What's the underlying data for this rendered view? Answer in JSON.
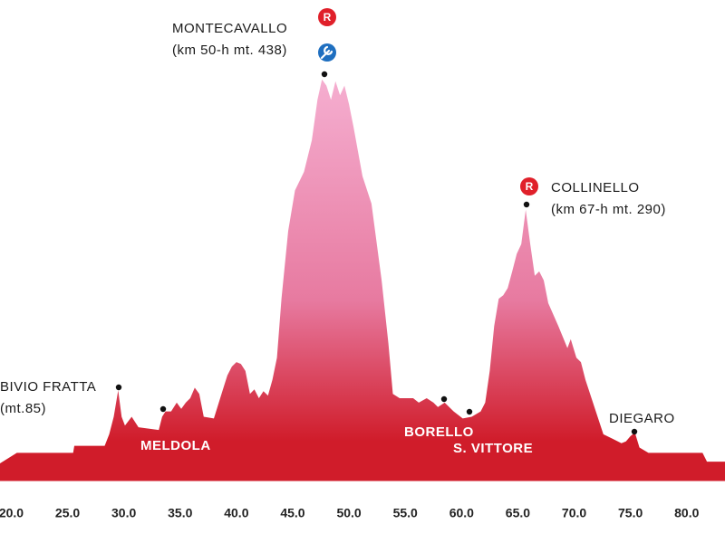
{
  "chart_data": {
    "type": "area",
    "color_top": "#f5aed0",
    "color_bottom": "#d01c2a",
    "xlim": [
      19.0,
      83.4
    ],
    "ylim": [
      -18,
      460
    ],
    "xticks": [
      {
        "value": 20,
        "label": "20.0"
      },
      {
        "value": 25,
        "label": "25.0"
      },
      {
        "value": 30,
        "label": "30.0"
      },
      {
        "value": 35,
        "label": "35.0"
      },
      {
        "value": 40,
        "label": "40.0"
      },
      {
        "value": 45,
        "label": "45.0"
      },
      {
        "value": 50,
        "label": "50.0"
      },
      {
        "value": 55,
        "label": "55.0"
      },
      {
        "value": 60,
        "label": "60.0"
      },
      {
        "value": 65,
        "label": "65.0"
      },
      {
        "value": 70,
        "label": "70.0"
      },
      {
        "value": 75,
        "label": "75.0"
      },
      {
        "value": 80,
        "label": "80.0"
      }
    ],
    "x": [
      19.0,
      20.5,
      25.5,
      25.6,
      28.3,
      28.7,
      29.1,
      29.5,
      29.8,
      30.1,
      30.7,
      31.3,
      33.1,
      33.4,
      33.7,
      34.2,
      34.7,
      35.1,
      35.5,
      35.9,
      36.3,
      36.7,
      37.1,
      38.0,
      38.8,
      39.2,
      39.6,
      40.0,
      40.4,
      40.8,
      41.2,
      41.6,
      42.0,
      42.4,
      42.8,
      43.2,
      43.6,
      44.0,
      44.6,
      45.2,
      46.0,
      46.7,
      47.2,
      47.6,
      48.0,
      48.4,
      48.8,
      49.2,
      49.6,
      50.0,
      50.4,
      51.2,
      52.0,
      52.9,
      53.5,
      53.9,
      54.5,
      55.7,
      56.2,
      56.9,
      57.5,
      57.9,
      58.5,
      59.3,
      60.1,
      60.9,
      61.7,
      62.1,
      62.5,
      62.9,
      63.3,
      63.7,
      64.1,
      64.5,
      64.9,
      65.3,
      65.7,
      66.1,
      66.5,
      66.9,
      67.3,
      67.7,
      68.6,
      69.4,
      69.7,
      70.2,
      70.6,
      71.0,
      71.8,
      72.6,
      73.4,
      74.2,
      74.6,
      75.0,
      75.4,
      75.8,
      76.6,
      81.4,
      81.8,
      83.4
    ],
    "values": [
      2,
      14,
      14,
      22,
      22,
      35,
      55,
      85,
      55,
      45,
      55,
      43,
      40,
      55,
      61,
      61,
      71,
      64,
      71,
      76,
      88,
      81,
      55,
      53,
      86,
      102,
      112,
      117,
      115,
      107,
      81,
      86,
      76,
      84,
      79,
      97,
      122,
      189,
      266,
      312,
      333,
      369,
      415,
      438,
      431,
      415,
      436,
      420,
      431,
      410,
      384,
      328,
      297,
      210,
      138,
      81,
      76,
      76,
      71,
      76,
      71,
      66,
      71,
      61,
      53,
      55,
      61,
      71,
      107,
      158,
      189,
      193,
      201,
      220,
      240,
      251,
      290,
      251,
      215,
      220,
      210,
      184,
      158,
      133,
      143,
      122,
      117,
      97,
      66,
      35,
      30,
      25,
      27,
      33,
      37,
      20,
      14,
      14,
      4,
      4
    ],
    "icon_label": "R",
    "annotations": [
      {
        "name": "MONTECAVALLO",
        "detail": "(km 50-h mt. 438)"
      },
      {
        "name": "COLLINELLO",
        "detail": "(km 67-h mt. 290)"
      },
      {
        "name": "BIVIO FRATTA",
        "detail": "(mt.85)"
      },
      {
        "name": "MELDOLA"
      },
      {
        "name": "BORELLO"
      },
      {
        "name": "S. VITTORE"
      },
      {
        "name": "DIEGARO"
      }
    ]
  }
}
